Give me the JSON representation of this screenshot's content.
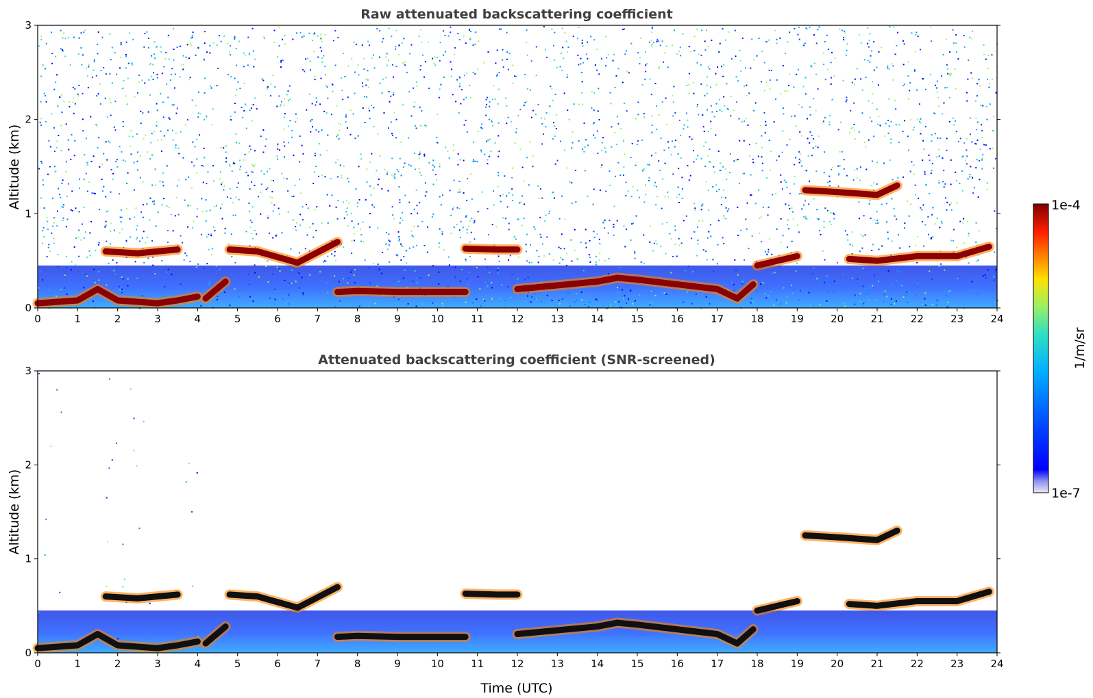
{
  "chart_data": [
    {
      "type": "heatmap",
      "title": "Raw attenuated backscattering coefficient",
      "xlabel": "",
      "ylabel": "Altitude (km)",
      "xlim": [
        0,
        24
      ],
      "ylim": [
        0,
        3
      ],
      "x_ticks": [
        "0",
        "1",
        "2",
        "3",
        "4",
        "5",
        "6",
        "7",
        "8",
        "9",
        "10",
        "11",
        "12",
        "13",
        "14",
        "15",
        "16",
        "17",
        "18",
        "19",
        "20",
        "21",
        "22",
        "23",
        "24"
      ],
      "y_ticks": [
        "0",
        "1",
        "2",
        "3"
      ],
      "grid": false,
      "noise": "high",
      "layer_tracks": [
        {
          "name": "",
          "x": [
            0,
            1,
            1.5,
            2,
            3,
            3.5,
            4
          ],
          "y": [
            0.05,
            0.08,
            0.2,
            0.08,
            0.05,
            0.08,
            0.12
          ]
        },
        {
          "name": "",
          "x": [
            1.7,
            2.5,
            3.5
          ],
          "y": [
            0.6,
            0.58,
            0.62
          ]
        },
        {
          "name": "",
          "x": [
            4.2,
            4.7
          ],
          "y": [
            0.1,
            0.28
          ]
        },
        {
          "name": "",
          "x": [
            4.8,
            5.5,
            6.5,
            7.5
          ],
          "y": [
            0.62,
            0.6,
            0.48,
            0.7
          ]
        },
        {
          "name": "",
          "x": [
            7.5,
            8,
            9,
            10,
            10.7
          ],
          "y": [
            0.17,
            0.18,
            0.17,
            0.17,
            0.17
          ]
        },
        {
          "name": "",
          "x": [
            10.7,
            11.5,
            12
          ],
          "y": [
            0.63,
            0.62,
            0.62
          ]
        },
        {
          "name": "",
          "x": [
            12,
            13,
            14,
            14.5,
            15,
            16,
            17,
            17.5,
            17.9
          ],
          "y": [
            0.2,
            0.24,
            0.28,
            0.32,
            0.3,
            0.25,
            0.2,
            0.1,
            0.25
          ]
        },
        {
          "name": "",
          "x": [
            18,
            18.5,
            19
          ],
          "y": [
            0.45,
            0.5,
            0.55
          ]
        },
        {
          "name": "",
          "x": [
            19.2,
            20,
            21,
            21.5
          ],
          "y": [
            1.25,
            1.23,
            1.2,
            1.3
          ]
        },
        {
          "name": "",
          "x": [
            20.3,
            21,
            22,
            23,
            23.8
          ],
          "y": [
            0.52,
            0.5,
            0.55,
            0.55,
            0.65
          ]
        }
      ]
    },
    {
      "type": "heatmap",
      "title": "Attenuated backscattering coefficient (SNR-screened)",
      "xlabel": "Time (UTC)",
      "ylabel": "Altitude (km)",
      "xlim": [
        0,
        24
      ],
      "ylim": [
        0,
        3
      ],
      "x_ticks": [
        "0",
        "1",
        "2",
        "3",
        "4",
        "5",
        "6",
        "7",
        "8",
        "9",
        "10",
        "11",
        "12",
        "13",
        "14",
        "15",
        "16",
        "17",
        "18",
        "19",
        "20",
        "21",
        "22",
        "23",
        "24"
      ],
      "y_ticks": [
        "0",
        "1",
        "2",
        "3"
      ],
      "grid": false,
      "noise": "screened",
      "layer_tracks": [
        {
          "name": "",
          "x": [
            0,
            1,
            1.5,
            2,
            3,
            3.5,
            4
          ],
          "y": [
            0.05,
            0.08,
            0.2,
            0.08,
            0.05,
            0.08,
            0.12
          ]
        },
        {
          "name": "",
          "x": [
            1.7,
            2.5,
            3.5
          ],
          "y": [
            0.6,
            0.58,
            0.62
          ]
        },
        {
          "name": "",
          "x": [
            4.2,
            4.7
          ],
          "y": [
            0.1,
            0.28
          ]
        },
        {
          "name": "",
          "x": [
            4.8,
            5.5,
            6.5,
            7.5
          ],
          "y": [
            0.62,
            0.6,
            0.48,
            0.7
          ]
        },
        {
          "name": "",
          "x": [
            7.5,
            8,
            9,
            10,
            10.7
          ],
          "y": [
            0.17,
            0.18,
            0.17,
            0.17,
            0.17
          ]
        },
        {
          "name": "",
          "x": [
            10.7,
            11.5,
            12
          ],
          "y": [
            0.63,
            0.62,
            0.62
          ]
        },
        {
          "name": "",
          "x": [
            12,
            13,
            14,
            14.5,
            15,
            16,
            17,
            17.5,
            17.9
          ],
          "y": [
            0.2,
            0.24,
            0.28,
            0.32,
            0.3,
            0.25,
            0.2,
            0.1,
            0.25
          ]
        },
        {
          "name": "",
          "x": [
            18,
            18.5,
            19
          ],
          "y": [
            0.45,
            0.5,
            0.55
          ]
        },
        {
          "name": "",
          "x": [
            19.2,
            20,
            21,
            21.5
          ],
          "y": [
            1.25,
            1.23,
            1.2,
            1.3
          ]
        },
        {
          "name": "",
          "x": [
            20.3,
            21,
            22,
            23,
            23.8
          ],
          "y": [
            0.52,
            0.5,
            0.55,
            0.55,
            0.65
          ]
        }
      ]
    }
  ],
  "colorbar": {
    "label": "1/m/sr",
    "min_label": "1e-7",
    "max_label": "1e-4",
    "scale": "log",
    "colors": [
      "#e8e8f8",
      "#9090f0",
      "#0000ff",
      "#0050ff",
      "#00b0ff",
      "#30e0c0",
      "#a0f060",
      "#ffe000",
      "#ff8000",
      "#ff2000",
      "#a00000",
      "#800000"
    ]
  }
}
